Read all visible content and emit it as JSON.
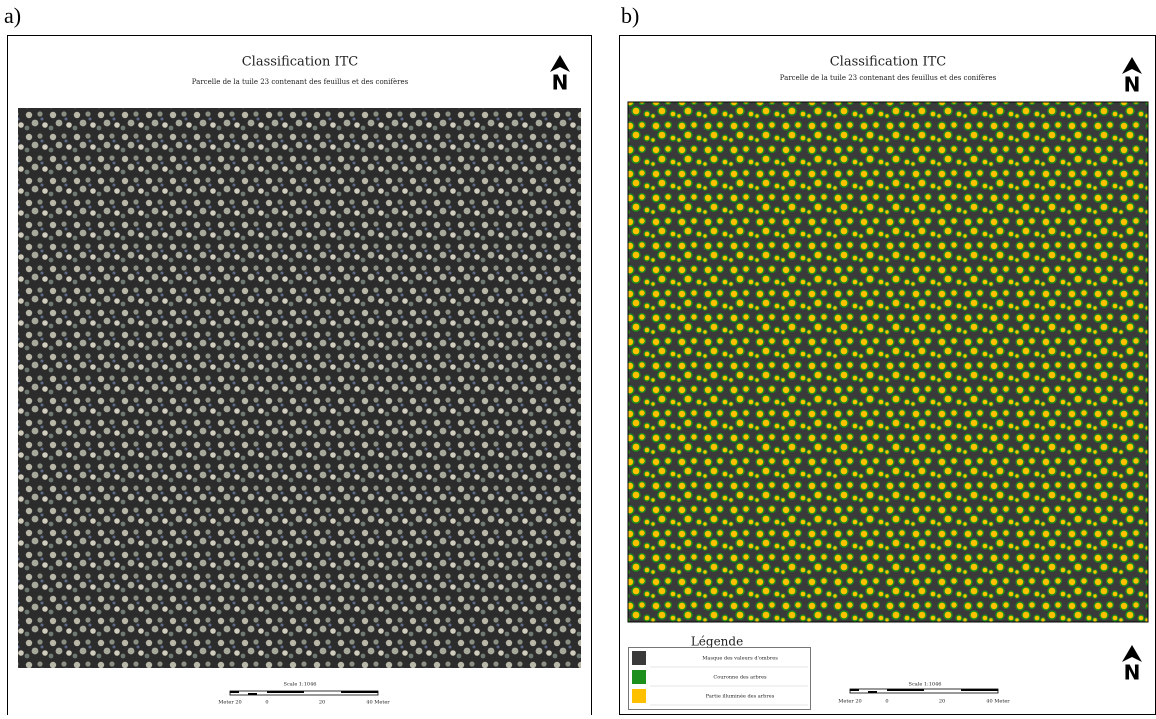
{
  "panels": [
    {
      "label": "a)",
      "title": "Classification ITC",
      "subtitle": "Parcelle de la tuile 23 contenant des feuillus et des conifères",
      "north": "N",
      "scale": "Scale 1:1046",
      "scale_labels": [
        "Meter 20",
        "0",
        "20",
        "40 Meter"
      ]
    },
    {
      "label": "b)",
      "title": "Classification ITC",
      "subtitle": "Parcelle de la tuile 23 contenant des feuillus et des conifères",
      "north": "N",
      "scale": "Scale 1:1046",
      "scale_labels": [
        "Meter 20",
        "0",
        "20",
        "40 Meter"
      ],
      "legend": {
        "title": "Légende",
        "items": [
          {
            "label": "Masque des valeurs d'ombres",
            "color": "#3a3a3a"
          },
          {
            "label": "Couronne des arbres",
            "color": "#1c8f1c"
          },
          {
            "label": "Partie illuminée des arbres",
            "color": "#ffc000"
          }
        ]
      }
    }
  ]
}
